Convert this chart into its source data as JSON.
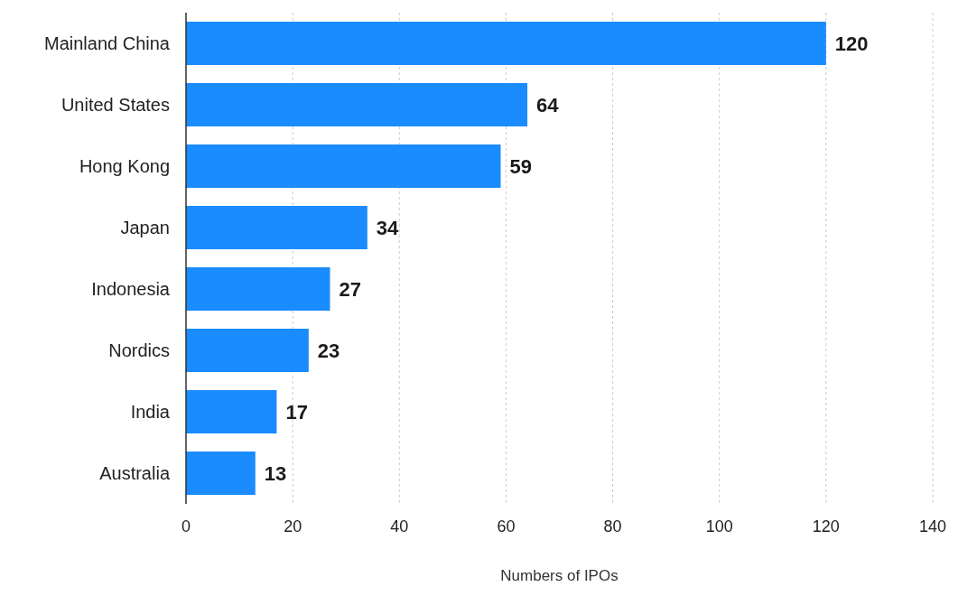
{
  "chart_data": {
    "type": "bar",
    "orientation": "horizontal",
    "xlabel": "Numbers of IPOs",
    "categories": [
      "Mainland China",
      "United States",
      "Hong Kong",
      "Japan",
      "Indonesia",
      "Nordics",
      "India",
      "Australia"
    ],
    "values": [
      120,
      64,
      59,
      34,
      27,
      23,
      17,
      13
    ],
    "color": "#1a8cff",
    "xlim": [
      0,
      140
    ],
    "xticks": [
      0,
      20,
      40,
      60,
      80,
      100,
      120,
      140
    ],
    "grid": "x",
    "data_labels": true
  }
}
